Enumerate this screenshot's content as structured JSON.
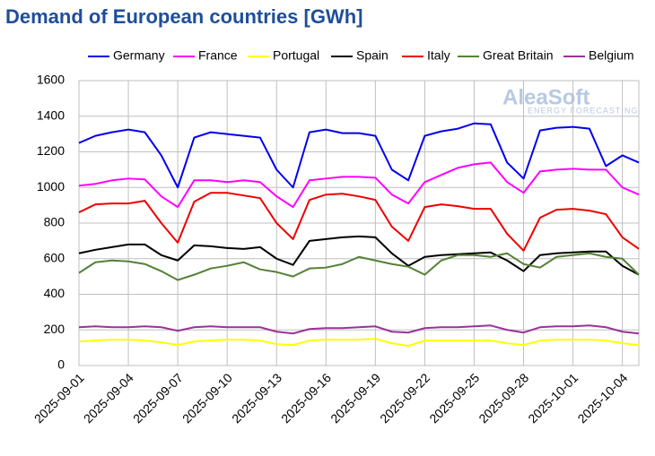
{
  "chart_data": {
    "type": "line",
    "title": "Demand of European countries [GWh]",
    "watermark": {
      "brand": "AleaSoft",
      "tagline": "ENERGY FORECASTING"
    },
    "x": [
      "2025-09-01",
      "2025-09-02",
      "2025-09-03",
      "2025-09-04",
      "2025-09-05",
      "2025-09-06",
      "2025-09-07",
      "2025-09-08",
      "2025-09-09",
      "2025-09-10",
      "2025-09-11",
      "2025-09-12",
      "2025-09-13",
      "2025-09-14",
      "2025-09-15",
      "2025-09-16",
      "2025-09-17",
      "2025-09-18",
      "2025-09-19",
      "2025-09-20",
      "2025-09-21",
      "2025-09-22",
      "2025-09-23",
      "2025-09-24",
      "2025-09-25",
      "2025-09-26",
      "2025-09-27",
      "2025-09-28",
      "2025-09-29",
      "2025-09-30",
      "2025-10-01",
      "2025-10-02",
      "2025-10-03",
      "2025-10-04",
      "2025-10-05"
    ],
    "xticks": [
      "2025-09-01",
      "2025-09-04",
      "2025-09-07",
      "2025-09-10",
      "2025-09-13",
      "2025-09-16",
      "2025-09-19",
      "2025-09-22",
      "2025-09-25",
      "2025-09-28",
      "2025-10-01",
      "2025-10-04"
    ],
    "ylim": [
      0,
      1600
    ],
    "yticks": [
      0,
      200,
      400,
      600,
      800,
      1000,
      1200,
      1400,
      1600
    ],
    "grid": true,
    "legend": "top",
    "series": [
      {
        "name": "Germany",
        "color": "#0000ee",
        "values": [
          1250,
          1290,
          1310,
          1325,
          1310,
          1180,
          1000,
          1280,
          1310,
          1300,
          1290,
          1280,
          1100,
          1000,
          1310,
          1325,
          1305,
          1305,
          1290,
          1100,
          1040,
          1290,
          1315,
          1330,
          1360,
          1355,
          1140,
          1050,
          1320,
          1335,
          1340,
          1330,
          1120,
          1180,
          1140
        ]
      },
      {
        "name": "France",
        "color": "#ff00ff",
        "values": [
          1010,
          1020,
          1040,
          1050,
          1045,
          950,
          890,
          1040,
          1040,
          1030,
          1040,
          1030,
          950,
          890,
          1040,
          1050,
          1060,
          1060,
          1055,
          960,
          910,
          1030,
          1070,
          1110,
          1130,
          1140,
          1030,
          970,
          1090,
          1100,
          1105,
          1100,
          1100,
          1000,
          960
        ]
      },
      {
        "name": "Portugal",
        "color": "#ffff00",
        "values": [
          135,
          140,
          145,
          145,
          140,
          130,
          115,
          135,
          140,
          145,
          145,
          140,
          120,
          115,
          140,
          145,
          145,
          145,
          150,
          125,
          110,
          140,
          140,
          140,
          140,
          140,
          125,
          115,
          140,
          145,
          145,
          145,
          140,
          125,
          115
        ]
      },
      {
        "name": "Spain",
        "color": "#000000",
        "values": [
          630,
          650,
          665,
          680,
          680,
          620,
          590,
          675,
          670,
          660,
          655,
          665,
          600,
          565,
          700,
          710,
          720,
          725,
          720,
          630,
          560,
          610,
          620,
          625,
          630,
          635,
          590,
          530,
          620,
          630,
          635,
          640,
          640,
          560,
          510
        ]
      },
      {
        "name": "Italy",
        "color": "#ee0000",
        "values": [
          860,
          905,
          910,
          910,
          925,
          800,
          690,
          920,
          970,
          970,
          955,
          940,
          800,
          710,
          930,
          960,
          965,
          950,
          930,
          780,
          700,
          890,
          905,
          895,
          880,
          880,
          740,
          645,
          830,
          875,
          880,
          870,
          850,
          720,
          655
        ]
      },
      {
        "name": "Great Britain",
        "color": "#538135",
        "values": [
          520,
          580,
          590,
          585,
          570,
          530,
          480,
          510,
          545,
          560,
          580,
          540,
          525,
          500,
          545,
          550,
          570,
          610,
          590,
          570,
          555,
          510,
          590,
          620,
          620,
          610,
          630,
          570,
          550,
          610,
          620,
          630,
          610,
          600,
          510
        ]
      },
      {
        "name": "Belgium",
        "color": "#993399",
        "values": [
          215,
          220,
          215,
          215,
          220,
          215,
          195,
          215,
          220,
          215,
          215,
          215,
          190,
          180,
          205,
          210,
          210,
          215,
          220,
          190,
          185,
          210,
          215,
          215,
          220,
          225,
          200,
          185,
          215,
          220,
          220,
          225,
          215,
          190,
          180
        ]
      }
    ]
  }
}
